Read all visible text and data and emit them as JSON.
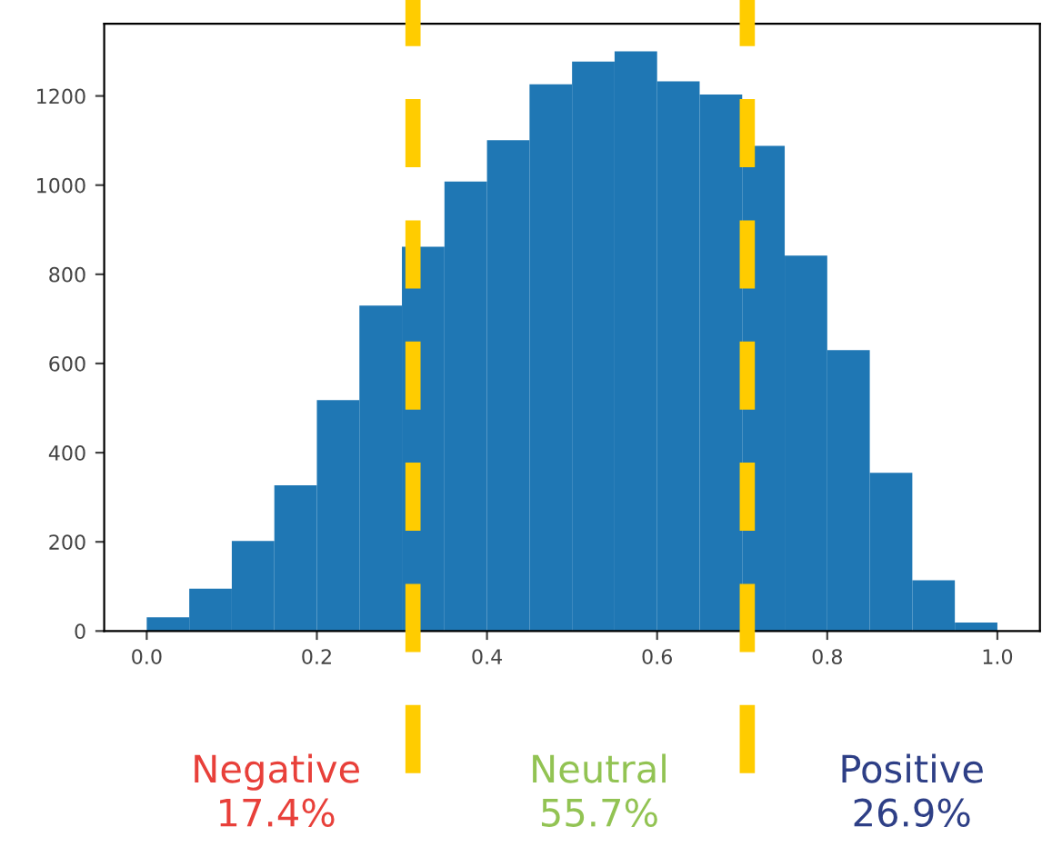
{
  "chart_data": {
    "type": "histogram",
    "bins": [
      0.0,
      0.05,
      0.1,
      0.15,
      0.2,
      0.25,
      0.3,
      0.35,
      0.4,
      0.45,
      0.5,
      0.55,
      0.6,
      0.65,
      0.7,
      0.75,
      0.8,
      0.85,
      0.9,
      0.95,
      1.0
    ],
    "values": [
      31,
      95,
      202,
      327,
      518,
      730,
      862,
      1008,
      1101,
      1226,
      1277,
      1300,
      1233,
      1203,
      1088,
      842,
      630,
      355,
      114,
      19
    ],
    "color": "#1f77b4",
    "xlim": [
      -0.05,
      1.05
    ],
    "ylim": [
      0,
      1362
    ],
    "xticks": [
      {
        "value": 0.0,
        "label": "0.0"
      },
      0.2,
      0.4,
      0.6,
      0.8,
      {
        "value": 1.0,
        "label": "1.0"
      }
    ],
    "yticks": [
      0,
      200,
      400,
      600,
      800,
      1000,
      1200
    ],
    "grid": false,
    "ref_lines": [
      {
        "axis": "x",
        "value": 0.313,
        "color": "#ffcc00",
        "line_style": "dashed"
      },
      {
        "axis": "x",
        "value": 0.706,
        "color": "#ffcc00",
        "line_style": "dashed"
      }
    ],
    "annotations": [
      "Negative\n17.4%",
      "Neutral\n55.7%",
      "Positive\n26.9%"
    ]
  }
}
